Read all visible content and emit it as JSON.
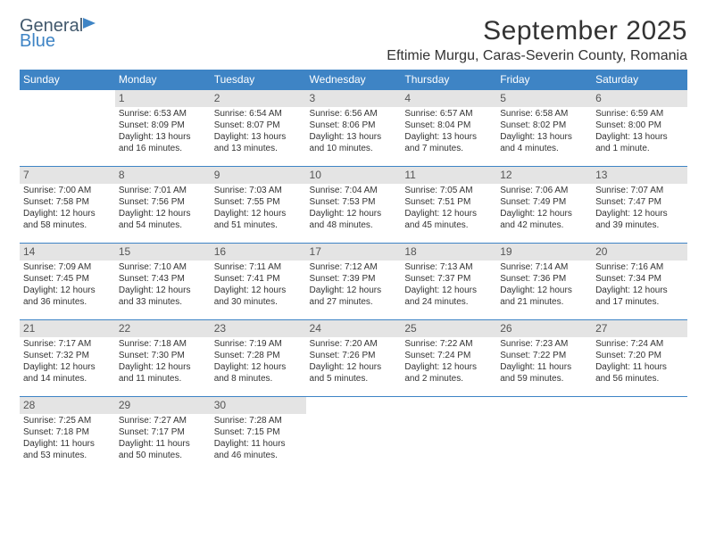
{
  "logo": {
    "part1": "General",
    "part2": "Blue"
  },
  "title": "September 2025",
  "location": "Eftimie Murgu, Caras-Severin County, Romania",
  "dow": [
    "Sunday",
    "Monday",
    "Tuesday",
    "Wednesday",
    "Thursday",
    "Friday",
    "Saturday"
  ],
  "weeks": [
    [
      {
        "n": "",
        "t": ""
      },
      {
        "n": "1",
        "t": "Sunrise: 6:53 AM\nSunset: 8:09 PM\nDaylight: 13 hours and 16 minutes."
      },
      {
        "n": "2",
        "t": "Sunrise: 6:54 AM\nSunset: 8:07 PM\nDaylight: 13 hours and 13 minutes."
      },
      {
        "n": "3",
        "t": "Sunrise: 6:56 AM\nSunset: 8:06 PM\nDaylight: 13 hours and 10 minutes."
      },
      {
        "n": "4",
        "t": "Sunrise: 6:57 AM\nSunset: 8:04 PM\nDaylight: 13 hours and 7 minutes."
      },
      {
        "n": "5",
        "t": "Sunrise: 6:58 AM\nSunset: 8:02 PM\nDaylight: 13 hours and 4 minutes."
      },
      {
        "n": "6",
        "t": "Sunrise: 6:59 AM\nSunset: 8:00 PM\nDaylight: 13 hours and 1 minute."
      }
    ],
    [
      {
        "n": "7",
        "t": "Sunrise: 7:00 AM\nSunset: 7:58 PM\nDaylight: 12 hours and 58 minutes."
      },
      {
        "n": "8",
        "t": "Sunrise: 7:01 AM\nSunset: 7:56 PM\nDaylight: 12 hours and 54 minutes."
      },
      {
        "n": "9",
        "t": "Sunrise: 7:03 AM\nSunset: 7:55 PM\nDaylight: 12 hours and 51 minutes."
      },
      {
        "n": "10",
        "t": "Sunrise: 7:04 AM\nSunset: 7:53 PM\nDaylight: 12 hours and 48 minutes."
      },
      {
        "n": "11",
        "t": "Sunrise: 7:05 AM\nSunset: 7:51 PM\nDaylight: 12 hours and 45 minutes."
      },
      {
        "n": "12",
        "t": "Sunrise: 7:06 AM\nSunset: 7:49 PM\nDaylight: 12 hours and 42 minutes."
      },
      {
        "n": "13",
        "t": "Sunrise: 7:07 AM\nSunset: 7:47 PM\nDaylight: 12 hours and 39 minutes."
      }
    ],
    [
      {
        "n": "14",
        "t": "Sunrise: 7:09 AM\nSunset: 7:45 PM\nDaylight: 12 hours and 36 minutes."
      },
      {
        "n": "15",
        "t": "Sunrise: 7:10 AM\nSunset: 7:43 PM\nDaylight: 12 hours and 33 minutes."
      },
      {
        "n": "16",
        "t": "Sunrise: 7:11 AM\nSunset: 7:41 PM\nDaylight: 12 hours and 30 minutes."
      },
      {
        "n": "17",
        "t": "Sunrise: 7:12 AM\nSunset: 7:39 PM\nDaylight: 12 hours and 27 minutes."
      },
      {
        "n": "18",
        "t": "Sunrise: 7:13 AM\nSunset: 7:37 PM\nDaylight: 12 hours and 24 minutes."
      },
      {
        "n": "19",
        "t": "Sunrise: 7:14 AM\nSunset: 7:36 PM\nDaylight: 12 hours and 21 minutes."
      },
      {
        "n": "20",
        "t": "Sunrise: 7:16 AM\nSunset: 7:34 PM\nDaylight: 12 hours and 17 minutes."
      }
    ],
    [
      {
        "n": "21",
        "t": "Sunrise: 7:17 AM\nSunset: 7:32 PM\nDaylight: 12 hours and 14 minutes."
      },
      {
        "n": "22",
        "t": "Sunrise: 7:18 AM\nSunset: 7:30 PM\nDaylight: 12 hours and 11 minutes."
      },
      {
        "n": "23",
        "t": "Sunrise: 7:19 AM\nSunset: 7:28 PM\nDaylight: 12 hours and 8 minutes."
      },
      {
        "n": "24",
        "t": "Sunrise: 7:20 AM\nSunset: 7:26 PM\nDaylight: 12 hours and 5 minutes."
      },
      {
        "n": "25",
        "t": "Sunrise: 7:22 AM\nSunset: 7:24 PM\nDaylight: 12 hours and 2 minutes."
      },
      {
        "n": "26",
        "t": "Sunrise: 7:23 AM\nSunset: 7:22 PM\nDaylight: 11 hours and 59 minutes."
      },
      {
        "n": "27",
        "t": "Sunrise: 7:24 AM\nSunset: 7:20 PM\nDaylight: 11 hours and 56 minutes."
      }
    ],
    [
      {
        "n": "28",
        "t": "Sunrise: 7:25 AM\nSunset: 7:18 PM\nDaylight: 11 hours and 53 minutes."
      },
      {
        "n": "29",
        "t": "Sunrise: 7:27 AM\nSunset: 7:17 PM\nDaylight: 11 hours and 50 minutes."
      },
      {
        "n": "30",
        "t": "Sunrise: 7:28 AM\nSunset: 7:15 PM\nDaylight: 11 hours and 46 minutes."
      },
      {
        "n": "",
        "t": ""
      },
      {
        "n": "",
        "t": ""
      },
      {
        "n": "",
        "t": ""
      },
      {
        "n": "",
        "t": ""
      }
    ]
  ],
  "colors": {
    "header_bg": "#3e84c5",
    "header_text": "#ffffff",
    "daynum_bg": "#e4e4e4",
    "border": "#3e84c5",
    "text": "#333333"
  }
}
